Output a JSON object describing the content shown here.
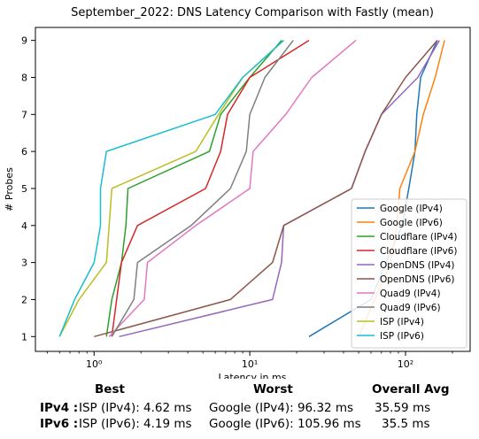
{
  "chart_data": {
    "type": "line",
    "title": "September_2022: DNS Latency Comparison with Fastly (mean)",
    "xlabel": "Latency in ms",
    "ylabel": "# Probes",
    "xscale": "log",
    "xlim": [
      0.42,
      260
    ],
    "ylim": [
      0.6,
      9.35
    ],
    "xticks": [
      1,
      10,
      100
    ],
    "xtick_labels": [
      "10⁰",
      "10¹",
      "10²"
    ],
    "yticks": [
      1,
      2,
      3,
      4,
      5,
      6,
      7,
      8,
      9
    ],
    "grid": false,
    "legend_position": "lower-right",
    "series": [
      {
        "name": "Google (IPv4)",
        "color": "#1f77b4",
        "points": [
          [
            24,
            1
          ],
          [
            60,
            2
          ],
          [
            75,
            3
          ],
          [
            95,
            4
          ],
          [
            105,
            5
          ],
          [
            115,
            6
          ],
          [
            118,
            7
          ],
          [
            125,
            8
          ],
          [
            160,
            9
          ]
        ]
      },
      {
        "name": "Google (IPv6)",
        "color": "#ff7f0e",
        "points": [
          [
            50,
            1
          ],
          [
            80,
            3
          ],
          [
            88,
            4
          ],
          [
            92,
            5
          ],
          [
            115,
            6
          ],
          [
            130,
            7
          ],
          [
            155,
            8
          ],
          [
            178,
            9
          ]
        ]
      },
      {
        "name": "Cloudflare (IPv4)",
        "color": "#2ca02c",
        "points": [
          [
            1.2,
            1
          ],
          [
            1.3,
            2
          ],
          [
            1.5,
            3
          ],
          [
            1.6,
            4
          ],
          [
            1.65,
            5
          ],
          [
            5.5,
            6
          ],
          [
            6.5,
            7
          ],
          [
            10,
            8
          ],
          [
            16,
            9
          ]
        ]
      },
      {
        "name": "Cloudflare (IPv6)",
        "color": "#d62728",
        "points": [
          [
            1.3,
            1
          ],
          [
            1.5,
            3
          ],
          [
            1.9,
            4
          ],
          [
            5.2,
            5
          ],
          [
            6.5,
            6
          ],
          [
            7.2,
            7
          ],
          [
            10,
            8
          ],
          [
            24,
            9
          ]
        ]
      },
      {
        "name": "OpenDNS (IPv4)",
        "color": "#9467bd",
        "points": [
          [
            1.45,
            1
          ],
          [
            14,
            2
          ],
          [
            16,
            3
          ],
          [
            16.5,
            4
          ],
          [
            45,
            5
          ],
          [
            55,
            6
          ],
          [
            70,
            7
          ],
          [
            120,
            8
          ],
          [
            165,
            9
          ]
        ]
      },
      {
        "name": "OpenDNS (IPv6)",
        "color": "#8c564b",
        "points": [
          [
            1,
            1
          ],
          [
            7.5,
            2
          ],
          [
            14,
            3
          ],
          [
            16.5,
            4
          ],
          [
            45,
            5
          ],
          [
            55,
            6
          ],
          [
            70,
            7
          ],
          [
            100,
            8
          ],
          [
            160,
            9
          ]
        ]
      },
      {
        "name": "Quad9 (IPv4)",
        "color": "#e377c2",
        "points": [
          [
            1.25,
            1
          ],
          [
            2.1,
            2
          ],
          [
            2.2,
            3
          ],
          [
            4.5,
            4
          ],
          [
            10,
            5
          ],
          [
            10.5,
            6
          ],
          [
            17,
            7
          ],
          [
            25,
            8
          ],
          [
            48,
            9
          ]
        ]
      },
      {
        "name": "Quad9 (IPv6)",
        "color": "#7f7f7f",
        "points": [
          [
            1.3,
            1
          ],
          [
            1.8,
            2
          ],
          [
            1.9,
            3
          ],
          [
            4.2,
            4
          ],
          [
            7.5,
            5
          ],
          [
            9.5,
            6
          ],
          [
            10,
            7
          ],
          [
            12.5,
            8
          ],
          [
            19,
            9
          ]
        ]
      },
      {
        "name": "ISP (IPv4)",
        "color": "#bcbd22",
        "points": [
          [
            0.6,
            1
          ],
          [
            0.8,
            2
          ],
          [
            1.2,
            3
          ],
          [
            1.25,
            4
          ],
          [
            1.3,
            5
          ],
          [
            4.5,
            6
          ],
          [
            6.3,
            7
          ],
          [
            9,
            8
          ],
          [
            16.5,
            9
          ]
        ]
      },
      {
        "name": "ISP (IPv6)",
        "color": "#17becf",
        "points": [
          [
            0.6,
            1
          ],
          [
            0.75,
            2
          ],
          [
            1,
            3
          ],
          [
            1.1,
            4
          ],
          [
            1.1,
            5
          ],
          [
            1.2,
            6
          ],
          [
            6,
            7
          ],
          [
            9,
            8
          ],
          [
            16.5,
            9
          ]
        ]
      }
    ]
  },
  "stats": {
    "headers": {
      "best": "Best",
      "worst": "Worst",
      "avg": "Overall Avg"
    },
    "rows": [
      {
        "label": "IPv4 :",
        "best": "ISP (IPv4): 4.62 ms",
        "worst": "Google (IPv4): 96.32 ms",
        "avg": "35.59 ms"
      },
      {
        "label": "IPv6 :",
        "best": "ISP (IPv6): 4.19 ms",
        "worst": "Google (IPv6): 105.96 ms",
        "avg": "35.5 ms"
      }
    ]
  }
}
